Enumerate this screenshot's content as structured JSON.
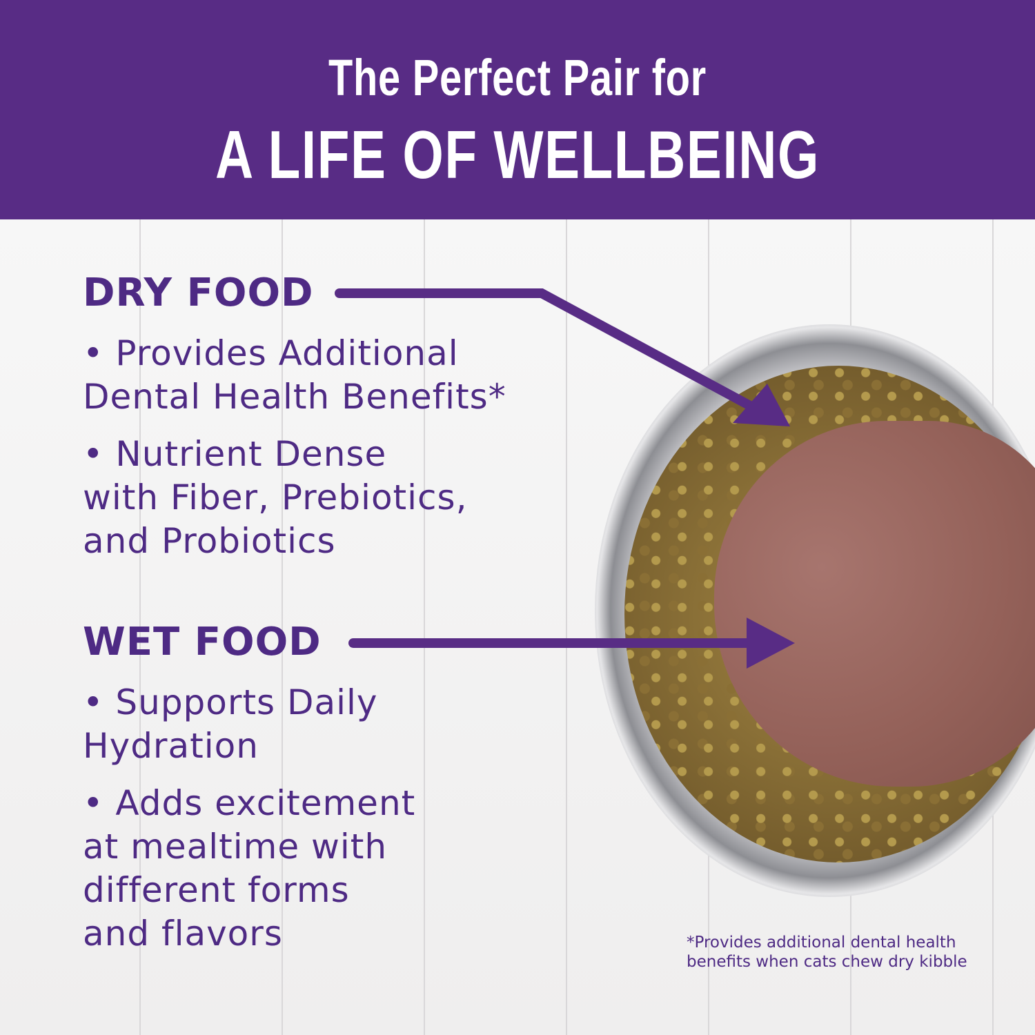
{
  "header": {
    "line1": "The Perfect Pair for",
    "line2": "A LIFE OF WELLBEING"
  },
  "colors": {
    "brand_purple": "#582c85",
    "text_purple": "#4e2a84"
  },
  "dry_food": {
    "title": "DRY FOOD",
    "bullets": [
      "• Provides Additional",
      "Dental Health Benefits*",
      "• Nutrient Dense",
      "with Fiber, Prebiotics,",
      "and Probiotics"
    ]
  },
  "wet_food": {
    "title": "WET FOOD",
    "bullets": [
      "• Supports Daily",
      "Hydration",
      "• Adds excitement",
      "at mealtime with",
      "different forms",
      "and flavors"
    ]
  },
  "footnote": {
    "line1": "*Provides additional dental health",
    "line2": "benefits when cats chew dry kibble"
  }
}
